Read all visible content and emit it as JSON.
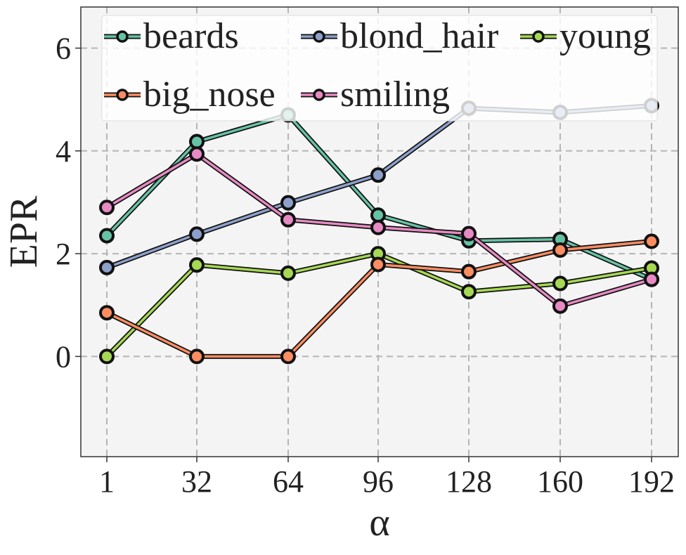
{
  "chart_data": {
    "type": "line",
    "title": "",
    "xlabel": "α",
    "ylabel": "EPR",
    "x": [
      1,
      32,
      64,
      96,
      128,
      160,
      192
    ],
    "x_tick_labels": [
      "1",
      "32",
      "64",
      "96",
      "128",
      "160",
      "192"
    ],
    "y_ticks": [
      0,
      2,
      4,
      6
    ],
    "y_tick_labels": [
      "0",
      "2",
      "4",
      "6"
    ],
    "ylim": [
      -1.95,
      6.8
    ],
    "grid": true,
    "legend_placement": "top",
    "series": [
      {
        "name": "beards",
        "color": "#66c2a5",
        "values": [
          2.35,
          4.18,
          4.7,
          2.75,
          2.25,
          2.28,
          1.5
        ]
      },
      {
        "name": "blond_hair",
        "color": "#8da0cb",
        "values": [
          1.73,
          2.38,
          2.99,
          3.53,
          4.83,
          4.75,
          4.88
        ]
      },
      {
        "name": "young",
        "color": "#a6d854",
        "values": [
          0.0,
          1.78,
          1.62,
          2.0,
          1.26,
          1.42,
          1.72
        ]
      },
      {
        "name": "big_nose",
        "color": "#fc8d62",
        "values": [
          0.85,
          0.0,
          0.0,
          1.79,
          1.65,
          2.07,
          2.24
        ]
      },
      {
        "name": "smiling",
        "color": "#e78ac3",
        "values": [
          2.9,
          3.94,
          2.66,
          2.51,
          2.39,
          0.98,
          1.5
        ]
      }
    ]
  }
}
